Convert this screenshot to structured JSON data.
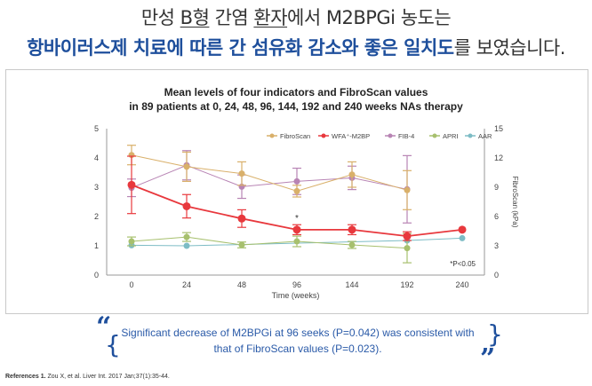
{
  "headline": {
    "line1_a": "만성 ",
    "line1_b": "B형",
    "line1_c": " 간염 ",
    "line1_d": "환자",
    "line1_e": "에서 M2BPGi 농도는",
    "line2_bold": "항바이러스제 치료에 따른 간 섬유화 감소와 좋은 일치도",
    "line2_plain": "를 보였습니다."
  },
  "chart_data": {
    "type": "line",
    "title": "Mean levels of four indicators and FibroScan values",
    "subtitle": "in 89 patients at 0, 24, 48, 96, 144, 192 and 240 weeks NAs therapy",
    "xlabel": "Time (weeks)",
    "ylabel_right": "FibroScan (kPa)",
    "x": [
      0,
      24,
      48,
      96,
      144,
      192,
      240
    ],
    "x_tick_labels": [
      "0",
      "24",
      "48",
      "96",
      "144",
      "192",
      "240"
    ],
    "ylim": [
      0,
      5
    ],
    "y_ticks": [
      "0",
      "1",
      "2",
      "3",
      "4",
      "5"
    ],
    "ylim_right": [
      0,
      15
    ],
    "y_ticks_right": [
      "0",
      "3",
      "6",
      "9",
      "12",
      "15"
    ],
    "legend_position": "top-right",
    "series": [
      {
        "name": "FibroScan",
        "axis": "right",
        "color": "#d9b06a",
        "values": [
          12.3,
          11.1,
          10.4,
          8.6,
          10.3,
          8.7,
          null
        ],
        "err": [
          1.0,
          1.5,
          1.2,
          0.6,
          1.3,
          2.0,
          null
        ]
      },
      {
        "name": "WFA+-M2BP",
        "axis": "left",
        "color": "#e8383d",
        "values": [
          3.08,
          2.35,
          1.93,
          1.55,
          1.55,
          1.33,
          1.55
        ],
        "err": [
          0.98,
          0.4,
          0.3,
          0.17,
          0.17,
          0.15,
          null
        ]
      },
      {
        "name": "FIB-4",
        "axis": "left",
        "color": "#b884b4",
        "values": [
          2.98,
          3.75,
          3.02,
          3.2,
          3.32,
          2.93,
          null
        ],
        "err": [
          0.3,
          0.5,
          0.4,
          0.45,
          0.4,
          1.15,
          null
        ]
      },
      {
        "name": "APRI",
        "axis": "left",
        "color": "#a7c06e",
        "values": [
          1.15,
          1.3,
          1.03,
          1.15,
          1.03,
          0.92,
          null
        ],
        "err": [
          0.15,
          0.15,
          0.1,
          0.18,
          0.12,
          0.5,
          null
        ]
      },
      {
        "name": "AAR",
        "axis": "left",
        "color": "#7dbcc5",
        "values": [
          1.02,
          1.0,
          null,
          null,
          null,
          1.18,
          1.26
        ],
        "err": [
          null,
          null,
          null,
          null,
          null,
          null,
          null
        ]
      }
    ],
    "annotations": [
      {
        "text": "*",
        "x": 96,
        "series": "WFA+-M2BP"
      },
      {
        "text": "*P<0.05",
        "position": "bottom-right"
      }
    ]
  },
  "conclusion": {
    "line1": "Significant decrease of M2BPGi at 96 seeks (P=0.042) was consistent with",
    "line2": "that of FibroScan values (P=0.023).",
    "open_quote": "“",
    "close_quote": "”"
  },
  "reference": {
    "label": "References 1.",
    "text": " Zou X, et al. Liver Int. 2017 Jan;37(1):35-44."
  }
}
